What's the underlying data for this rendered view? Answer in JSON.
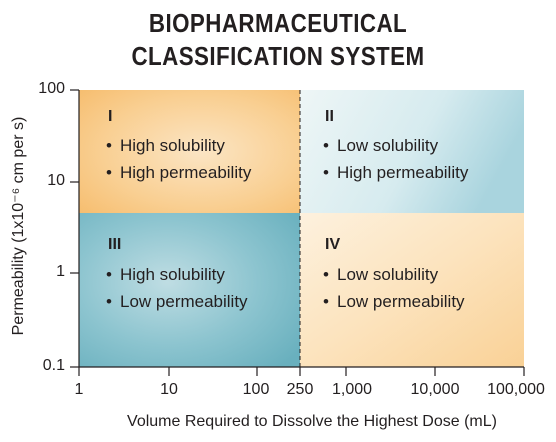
{
  "title": {
    "line1": "BIOPHARMACEUTICAL",
    "line2": "CLASSIFICATION SYSTEM"
  },
  "axes": {
    "x_label": "Volume Required to Dissolve the Highest Dose (mL)",
    "y_label": "Permeability (1x10⁻⁶ cm per s)",
    "x_ticks": [
      "1",
      "10",
      "100",
      "250",
      "1,000",
      "10,000",
      "100,000"
    ],
    "y_ticks": [
      "100",
      "10",
      "1",
      "0.1"
    ]
  },
  "quadrants": [
    {
      "id": "I",
      "lines": [
        "High solubility",
        "High permeability"
      ],
      "color": "#f9cc8a"
    },
    {
      "id": "II",
      "lines": [
        "Low solubility",
        "High permeability"
      ],
      "color": "#b9dde6"
    },
    {
      "id": "III",
      "lines": [
        "High solubility",
        "Low permeability"
      ],
      "color": "#7fbdc9"
    },
    {
      "id": "IV",
      "lines": [
        "Low solubility",
        "Low permeability"
      ],
      "color": "#fbdcae"
    }
  ],
  "bullet_glyph": "•"
}
